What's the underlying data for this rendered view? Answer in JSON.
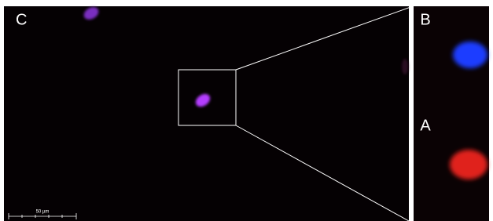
{
  "panels": {
    "main": {
      "label": "C"
    },
    "top": {
      "label": "B"
    },
    "bottom": {
      "label": "A"
    }
  },
  "scale_bar": {
    "label": "50 µm"
  }
}
